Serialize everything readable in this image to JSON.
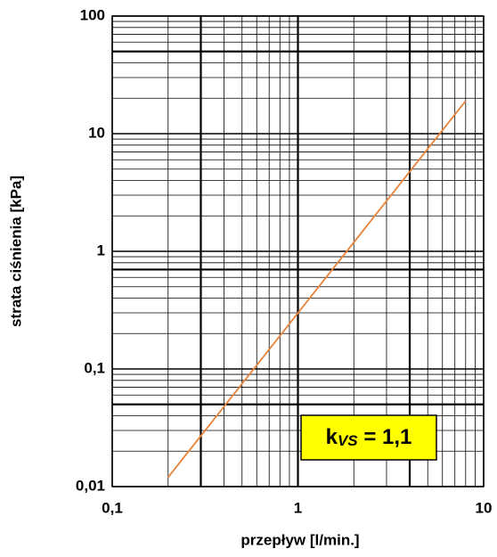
{
  "chart_data": {
    "type": "line",
    "xlabel": "przepływ [l/min.]",
    "ylabel": "strata ciśnienia  [kPa]",
    "xscale": "log",
    "yscale": "log",
    "grid": true,
    "xlim": [
      0.1,
      10
    ],
    "ylim": [
      0.01,
      100
    ],
    "xticks": [
      {
        "value": 0.1,
        "label": "0,1"
      },
      1,
      10
    ],
    "yticks": [
      {
        "value": 0.01,
        "label": "0,01"
      },
      {
        "value": 0.1,
        "label": "0,1"
      },
      1,
      10,
      100
    ],
    "xminor": [
      0.2,
      0.3,
      0.4,
      0.5,
      0.6,
      0.7,
      0.8,
      0.9,
      2,
      3,
      4,
      5,
      6,
      7,
      8,
      9
    ],
    "yminor": [
      0.02,
      0.03,
      0.04,
      0.05,
      0.06,
      0.07,
      0.08,
      0.09,
      0.2,
      0.3,
      0.4,
      0.5,
      0.6,
      0.7,
      0.8,
      0.9,
      2,
      3,
      4,
      5,
      6,
      7,
      8,
      9,
      20,
      30,
      40,
      50,
      60,
      70,
      80,
      90
    ],
    "xref": [
      0.3,
      1,
      4
    ],
    "yref": [
      50,
      0.7,
      0.05
    ],
    "series": [
      {
        "color": "#e8833a",
        "x": [
          0.2,
          8
        ],
        "values": [
          0.012,
          19
        ]
      }
    ],
    "annotation": {
      "text": "k",
      "subscript": "VS",
      "suffix": " = 1,1",
      "color": "#ffff00"
    }
  }
}
